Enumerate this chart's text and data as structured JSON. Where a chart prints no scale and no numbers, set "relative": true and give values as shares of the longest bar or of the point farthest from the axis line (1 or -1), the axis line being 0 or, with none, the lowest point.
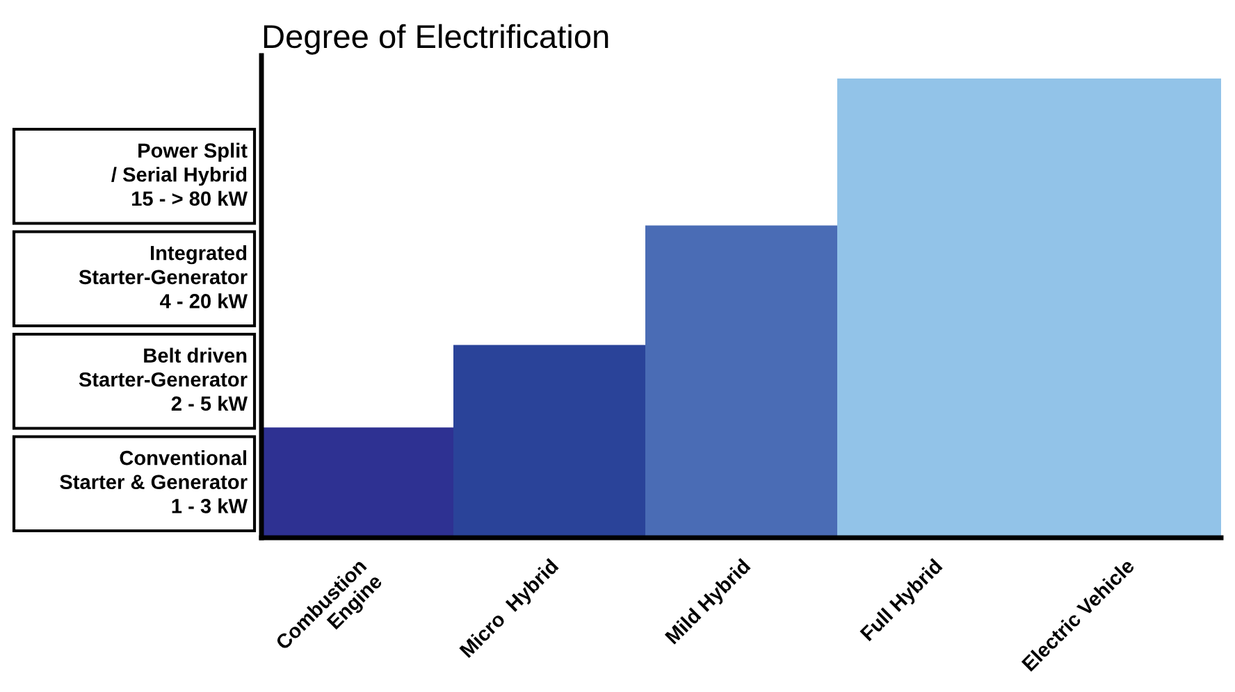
{
  "chart_data": {
    "type": "bar",
    "title": "Degree of Electrification",
    "categories": [
      "Combustion\nEngine",
      "Micro  Hybrid",
      "Mild Hybrid",
      "Full Hybrid",
      "Electric Vehicle"
    ],
    "values": [
      0.24,
      0.42,
      0.68,
      1.0,
      1.0
    ],
    "colors": [
      "#2e3192",
      "#2a4399",
      "#4a6cb5",
      "#92c3e8",
      "#92c3e8"
    ],
    "relative": true,
    "grid": false,
    "legend": false,
    "annotations": [
      "Power Split\n/ Serial Hybrid\n15 - > 80 kW",
      "Integrated\nStarter-Generator\n4 - 20 kW",
      "Belt driven\nStarter-Generator\n2 - 5 kW",
      "Conventional\nStarter & Generator\n1 - 3 kW"
    ]
  }
}
